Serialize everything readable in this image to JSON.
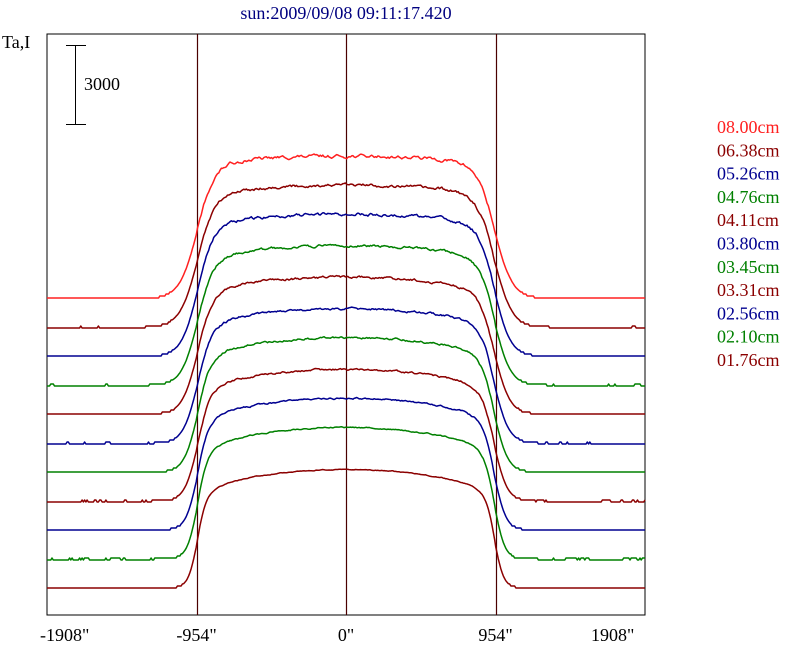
{
  "chart_data": {
    "type": "line",
    "title": "sun:2009/09/08 09:11:17.420",
    "ylabel": "Ta,I",
    "scale_bar": {
      "label": "3000",
      "value": 3000
    },
    "x_ticks": [
      {
        "label": "-1908\"",
        "value": -1908
      },
      {
        "label": "-954\"",
        "value": -954
      },
      {
        "label": "0\"",
        "value": 0
      },
      {
        "label": "954\"",
        "value": 954
      },
      {
        "label": "1908\"",
        "value": 1908
      }
    ],
    "xlim": [
      -1908,
      1908
    ],
    "vertical_lines": [
      -954,
      0,
      954
    ],
    "series": [
      {
        "name": "08.00cm",
        "color": "#ff2020",
        "offset": 11000,
        "amplitude": 5400,
        "limb": 0.1,
        "edge_slope": 55,
        "noise": 160
      },
      {
        "name": "06.38cm",
        "color": "#8b0000",
        "offset": 9900,
        "amplitude": 5400,
        "limb": 0.12,
        "edge_slope": 55,
        "noise": 150
      },
      {
        "name": "05.26cm",
        "color": "#000090",
        "offset": 8800,
        "amplitude": 5400,
        "limb": 0.14,
        "edge_slope": 50,
        "noise": 150
      },
      {
        "name": "04.76cm",
        "color": "#008000",
        "offset": 7700,
        "amplitude": 5300,
        "limb": 0.16,
        "edge_slope": 50,
        "noise": 120
      },
      {
        "name": "04.11cm",
        "color": "#8b0000",
        "offset": 6600,
        "amplitude": 5200,
        "limb": 0.18,
        "edge_slope": 48,
        "noise": 120
      },
      {
        "name": "03.80cm",
        "color": "#000090",
        "offset": 5500,
        "amplitude": 5100,
        "limb": 0.2,
        "edge_slope": 45,
        "noise": 110
      },
      {
        "name": "03.45cm",
        "color": "#008000",
        "offset": 4400,
        "amplitude": 5100,
        "limb": 0.22,
        "edge_slope": 42,
        "noise": 100
      },
      {
        "name": "03.31cm",
        "color": "#8b0000",
        "offset": 3300,
        "amplitude": 5000,
        "limb": 0.24,
        "edge_slope": 40,
        "noise": 90
      },
      {
        "name": "02.56cm",
        "color": "#000090",
        "offset": 2200,
        "amplitude": 5000,
        "limb": 0.26,
        "edge_slope": 36,
        "noise": 80
      },
      {
        "name": "02.10cm",
        "color": "#008000",
        "offset": 1100,
        "amplitude": 5000,
        "limb": 0.28,
        "edge_slope": 32,
        "noise": 60
      },
      {
        "name": "01.76cm",
        "color": "#8b0000",
        "offset": 0,
        "amplitude": 4500,
        "limb": 0.3,
        "edge_slope": 28,
        "noise": 40
      }
    ],
    "legend_position": "right"
  }
}
